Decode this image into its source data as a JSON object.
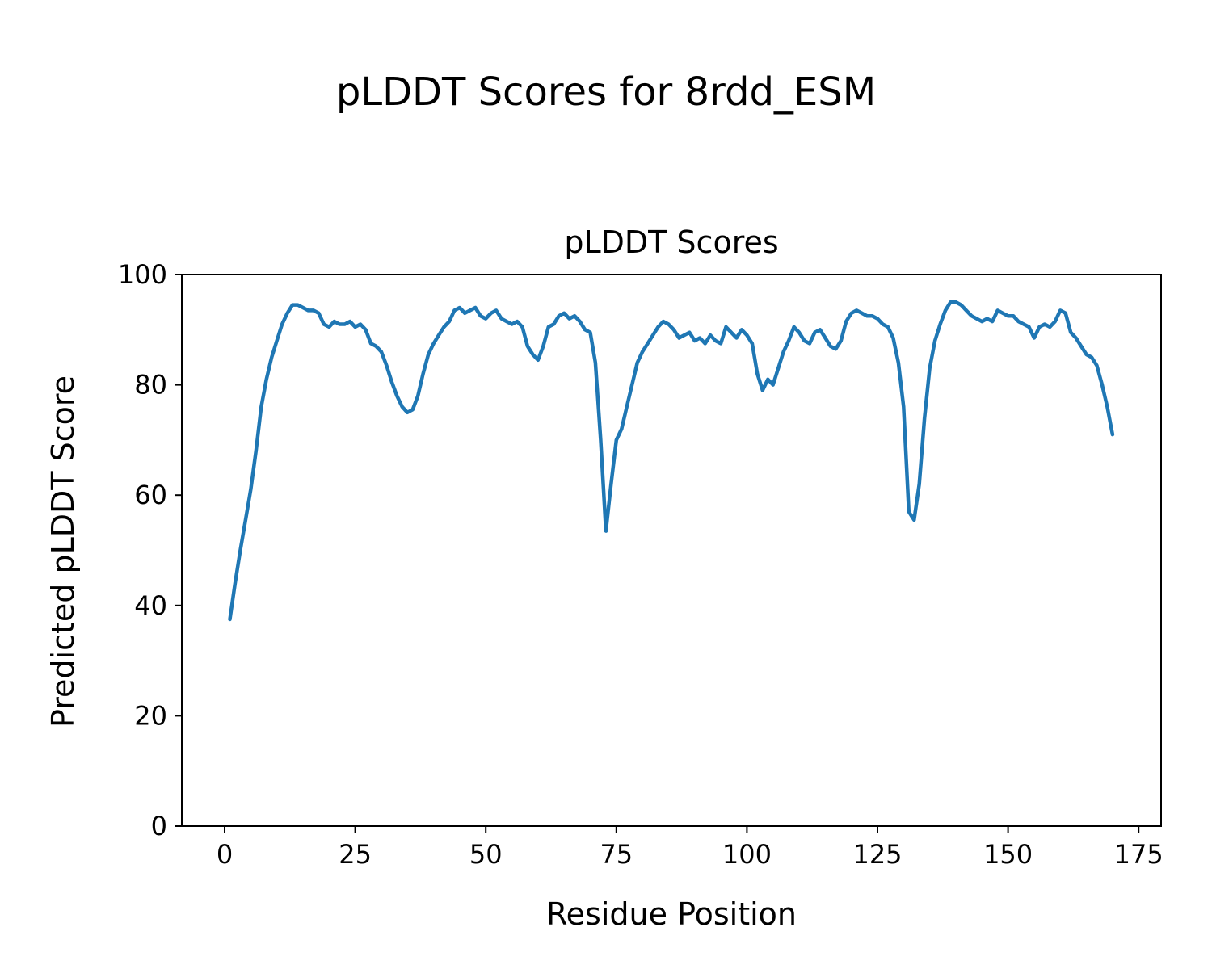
{
  "figure": {
    "suptitle": "pLDDT Scores for 8rdd_ESM"
  },
  "chart_data": {
    "type": "line",
    "title": "pLDDT Scores",
    "xlabel": "Residue Position",
    "ylabel": "Predicted pLDDT Score",
    "xlim": [
      -8.2,
      179.3
    ],
    "ylim": [
      0,
      100
    ],
    "x_ticks": [
      0,
      25,
      50,
      75,
      100,
      125,
      150,
      175
    ],
    "y_ticks": [
      0,
      20,
      40,
      60,
      80,
      100
    ],
    "grid": false,
    "legend": "none",
    "line_color": "#1f77b4",
    "series": [
      {
        "name": "pLDDT",
        "x_start": 1,
        "x_step": 1,
        "values": [
          37.5,
          44,
          50,
          55.5,
          61,
          68,
          76,
          81,
          85,
          88,
          91,
          93,
          94.5,
          94.5,
          94,
          93.5,
          93.5,
          93,
          91,
          90.5,
          91.5,
          91,
          91,
          91.5,
          90.5,
          91,
          90,
          87.5,
          87,
          86,
          83.5,
          80.5,
          78,
          76,
          75,
          75.5,
          78,
          82,
          85.5,
          87.5,
          89,
          90.5,
          91.5,
          93.5,
          94,
          93,
          93.5,
          94,
          92.5,
          92,
          93,
          93.5,
          92,
          91.5,
          91,
          91.5,
          90.5,
          87,
          85.5,
          84.5,
          87,
          90.5,
          91,
          92.5,
          93,
          92,
          92.5,
          91.5,
          90,
          89.5,
          84,
          70,
          53.5,
          62,
          70,
          72,
          76,
          80,
          84,
          86,
          87.5,
          89,
          90.5,
          91.5,
          91,
          90,
          88.5,
          89,
          89.5,
          88,
          88.5,
          87.5,
          89,
          88,
          87.5,
          90.5,
          89.5,
          88.5,
          90,
          89,
          87.5,
          82,
          79,
          81,
          80,
          83,
          86,
          88,
          90.5,
          89.5,
          88,
          87.5,
          89.5,
          90,
          88.5,
          87,
          86.5,
          88,
          91.5,
          93,
          93.5,
          93,
          92.5,
          92.5,
          92,
          91,
          90.5,
          88.5,
          84,
          76,
          57,
          55.5,
          62,
          74,
          83,
          88,
          91,
          93.5,
          95,
          95,
          94.5,
          93.5,
          92.5,
          92,
          91.5,
          92,
          91.5,
          93.5,
          93,
          92.5,
          92.5,
          91.5,
          91,
          90.5,
          88.5,
          90.5,
          91,
          90.5,
          91.5,
          93.5,
          93,
          89.5,
          88.5,
          87,
          85.5,
          85,
          83.5,
          80,
          76,
          71
        ]
      }
    ]
  }
}
